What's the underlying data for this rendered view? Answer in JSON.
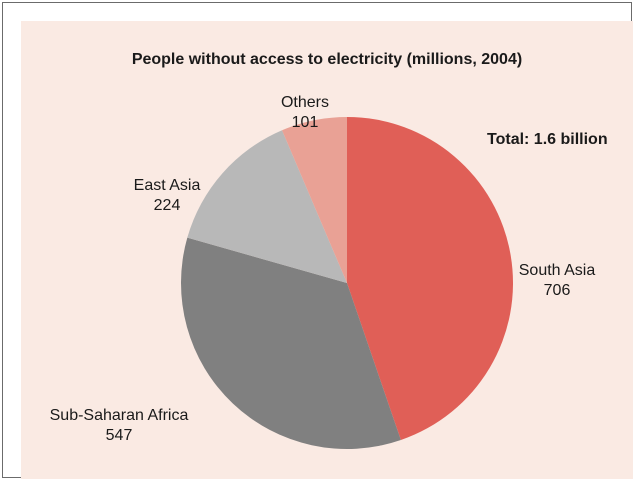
{
  "chart_data": {
    "type": "pie",
    "title": "People without access to electricity (millions, 2004)",
    "annotation": "Total: 1.6 billion",
    "categories": [
      "South Asia",
      "Sub-Saharan Africa",
      "East Asia",
      "Others"
    ],
    "values": [
      706,
      547,
      224,
      101
    ],
    "colors": [
      "#e05f57",
      "#808080",
      "#b8b8b8",
      "#e9a195"
    ],
    "start_angle_deg": 0,
    "direction": "clockwise"
  }
}
